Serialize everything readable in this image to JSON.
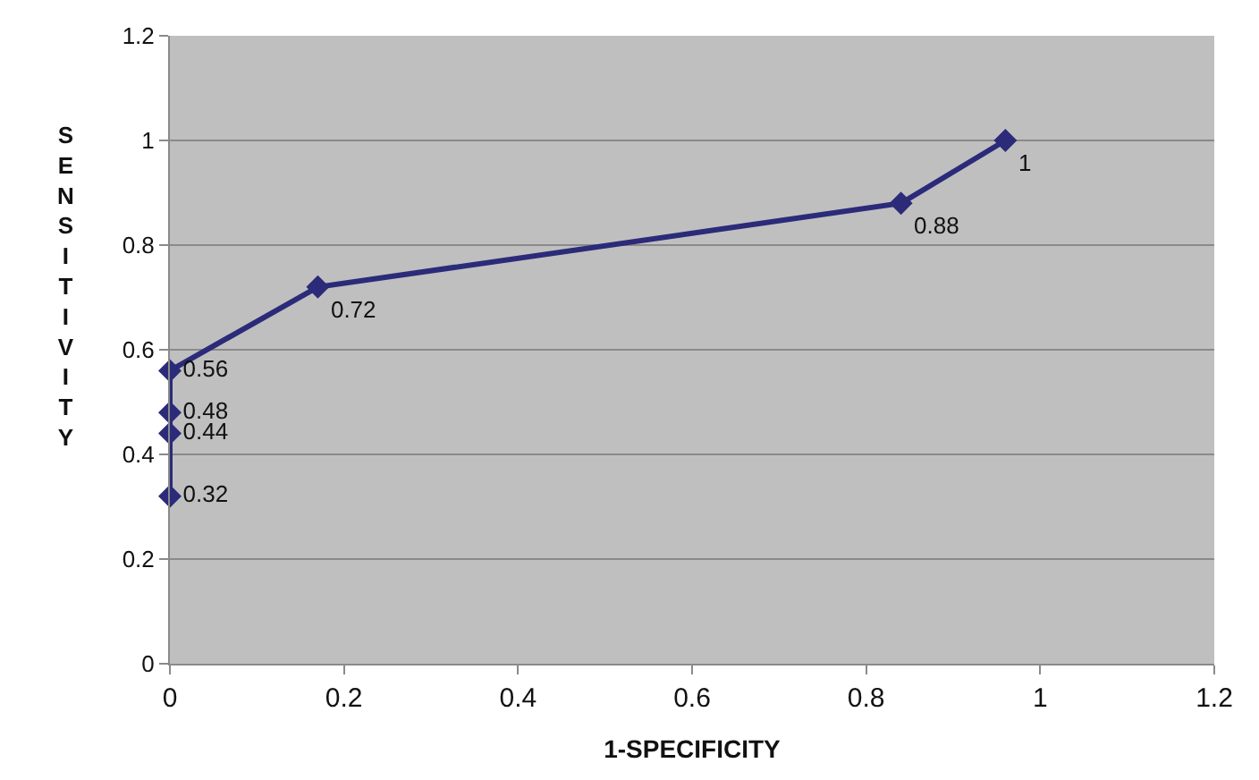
{
  "chart_data": {
    "type": "line",
    "xlabel": "1-SPECIFICITY",
    "ylabel": "SENSITIVITY",
    "x": [
      0,
      0,
      0,
      0,
      0.17,
      0.84,
      0.96
    ],
    "series": [
      {
        "color": "#2b2b7a",
        "values": [
          0.32,
          0.44,
          0.48,
          0.56,
          0.72,
          0.88,
          1
        ]
      }
    ],
    "xlim": [
      0,
      1.2
    ],
    "xticks": [
      0,
      0.2,
      0.4,
      0.6,
      0.8,
      1,
      1.2
    ],
    "ylim": [
      0,
      1.2
    ],
    "yticks": [
      0,
      0.2,
      0.4,
      0.6,
      0.8,
      1,
      1.2
    ],
    "grid": "y",
    "marker": "diamond",
    "line_style": "solid",
    "data_labels": true
  }
}
